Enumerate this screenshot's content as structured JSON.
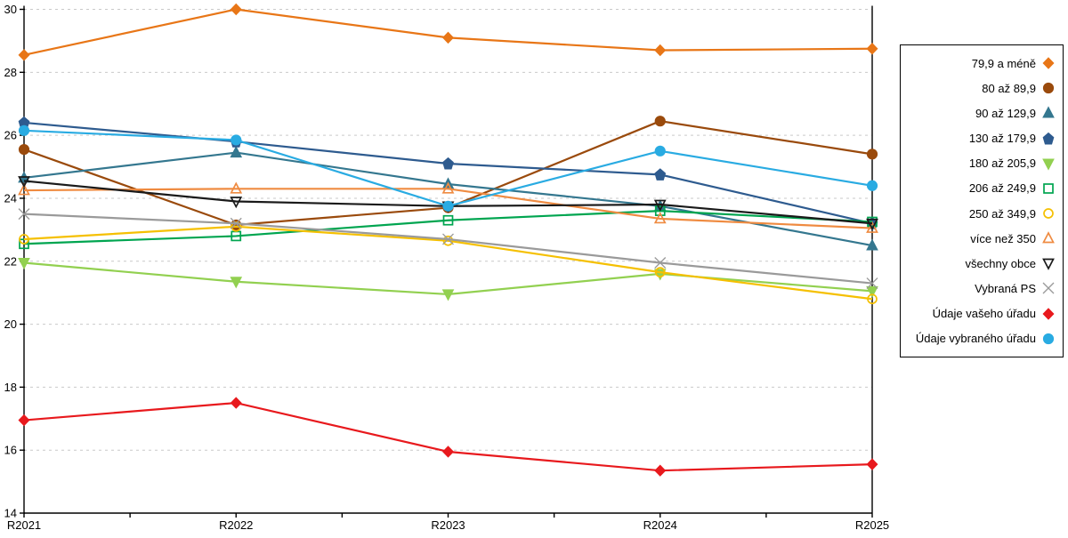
{
  "chart_data": {
    "type": "line",
    "title": "",
    "xlabel": "",
    "ylabel": "",
    "categories": [
      "R2021",
      "R2022",
      "R2023",
      "R2024",
      "R2025"
    ],
    "y_ticks": [
      14,
      16,
      18,
      20,
      22,
      24,
      26,
      28,
      30
    ],
    "ylim": [
      14,
      30
    ],
    "grid": "horizontal-dashed",
    "legend_position": "right",
    "series": [
      {
        "name": "79,9 a méně",
        "color": "#e87617",
        "marker": "diamond-filled",
        "values": [
          28.55,
          30.0,
          29.1,
          28.7,
          28.75
        ]
      },
      {
        "name": "80 až 89,9",
        "color": "#9a4a0c",
        "marker": "circle-filled",
        "values": [
          25.55,
          23.15,
          23.7,
          26.45,
          25.4
        ]
      },
      {
        "name": "90 až 129,9",
        "color": "#34778f",
        "marker": "triangle-up-filled",
        "values": [
          24.65,
          25.45,
          24.45,
          23.75,
          22.5
        ]
      },
      {
        "name": "130 až 179,9",
        "color": "#2e5b8f",
        "marker": "pentagon-filled",
        "values": [
          26.4,
          25.8,
          25.1,
          24.75,
          23.2
        ]
      },
      {
        "name": "180 až 205,9",
        "color": "#92d050",
        "marker": "triangle-down-filled",
        "values": [
          21.95,
          21.35,
          20.95,
          21.6,
          21.05
        ]
      },
      {
        "name": "206 až 249,9",
        "color": "#00a550",
        "marker": "square-open",
        "values": [
          22.55,
          22.8,
          23.3,
          23.6,
          23.25
        ]
      },
      {
        "name": "250 až 349,9",
        "color": "#f5c002",
        "marker": "circle-open",
        "values": [
          22.7,
          23.1,
          22.65,
          21.65,
          20.8
        ]
      },
      {
        "name": "více než 350",
        "color": "#ef8b41",
        "marker": "triangle-up-open",
        "values": [
          24.25,
          24.3,
          24.3,
          23.35,
          23.05
        ]
      },
      {
        "name": "všechny obce",
        "color": "#1a1a1a",
        "marker": "triangle-down-open",
        "values": [
          24.55,
          23.9,
          23.75,
          23.8,
          23.2
        ]
      },
      {
        "name": "Vybraná PS",
        "color": "#9a9a9a",
        "marker": "x",
        "values": [
          23.5,
          23.2,
          22.7,
          21.95,
          21.3
        ]
      },
      {
        "name": "Údaje vašeho úřadu",
        "color": "#e8191d",
        "marker": "diamond-filled",
        "values": [
          16.95,
          17.5,
          15.95,
          15.35,
          15.55
        ]
      },
      {
        "name": "Údaje vybraného úřadu",
        "color": "#29abe2",
        "marker": "circle-filled",
        "values": [
          26.15,
          25.85,
          23.75,
          25.5,
          24.4
        ]
      }
    ],
    "colors": {
      "grid": "#c9c9c9",
      "axis": "#000000",
      "background": "#ffffff"
    }
  }
}
